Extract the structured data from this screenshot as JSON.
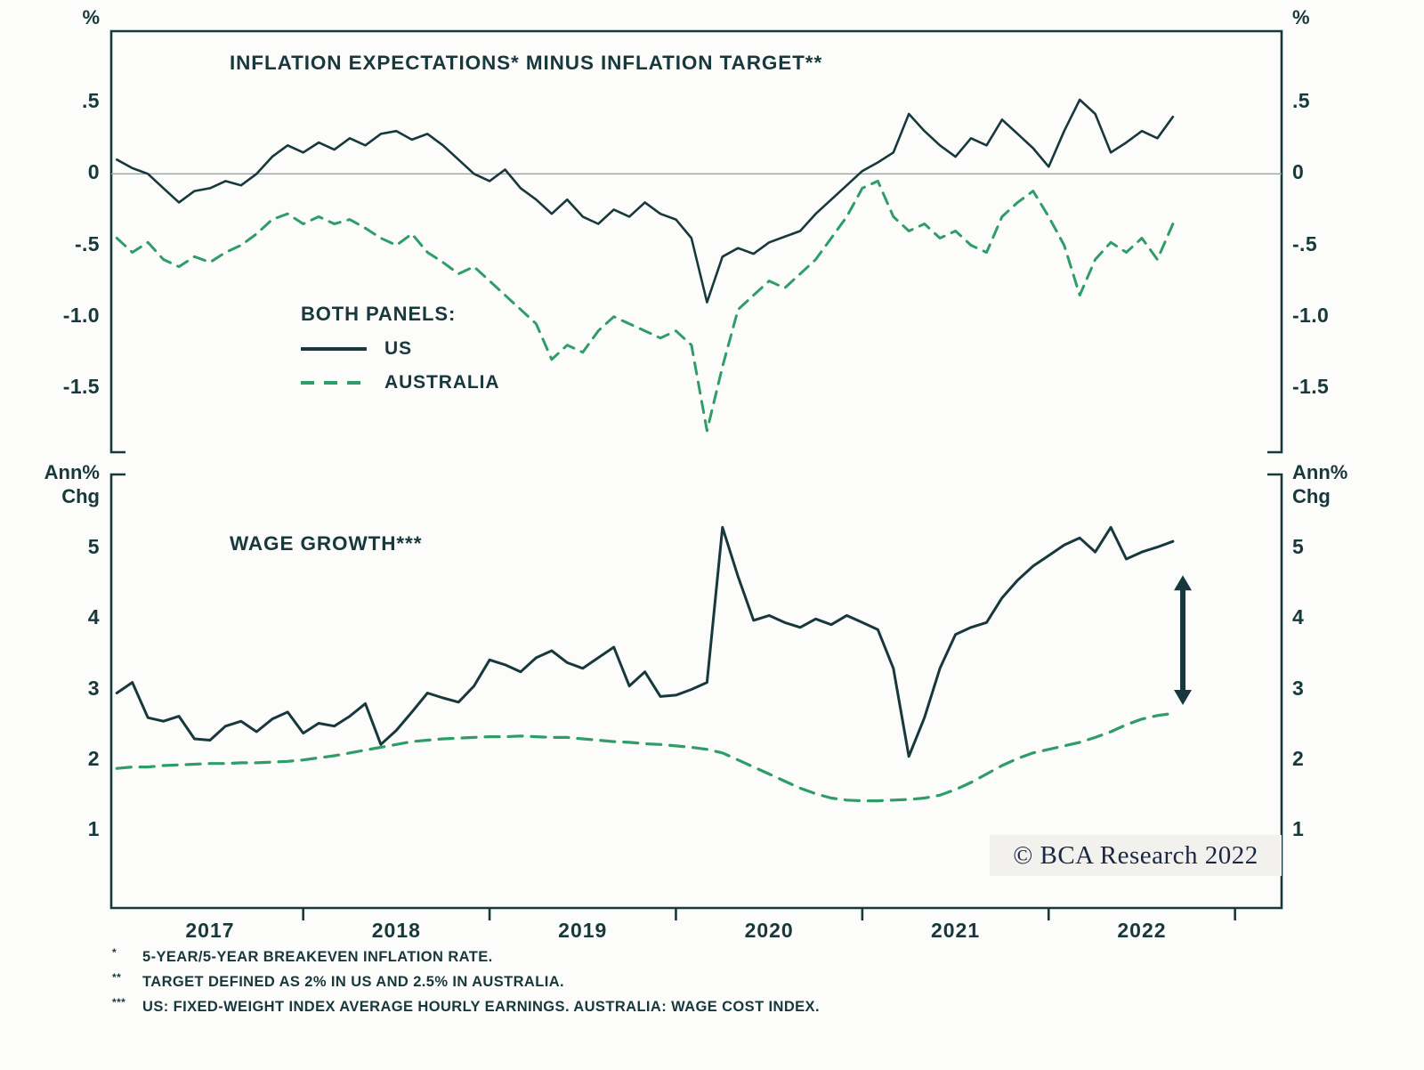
{
  "colors": {
    "ink": "#17383d",
    "green": "#2e9d68",
    "zero_line": "#9aa5a3",
    "watermark_bg": "#f2f1ee",
    "watermark_ink": "#1a2742",
    "background": "#fcfcfa"
  },
  "legend": {
    "title": "BOTH PANELS:",
    "items": [
      {
        "label": "US",
        "style": "solid"
      },
      {
        "label": "AUSTRALIA",
        "style": "dashed"
      }
    ]
  },
  "watermark": "© BCA Research 2022",
  "footnotes": [
    {
      "marker": "*",
      "text": "5-YEAR/5-YEAR BREAKEVEN INFLATION RATE."
    },
    {
      "marker": "**",
      "text": "TARGET DEFINED AS 2% IN US AND 2.5% IN AUSTRALIA."
    },
    {
      "marker": "***",
      "text": "US: FIXED-WEIGHT INDEX AVERAGE HOURLY EARNINGS. AUSTRALIA: WAGE COST INDEX."
    }
  ],
  "xaxis": {
    "xlim": [
      2016.97,
      2023.25
    ],
    "ticks": [
      2018,
      2019,
      2020,
      2021,
      2022,
      2023
    ],
    "labels": [
      {
        "x": 2017.5,
        "text": "2017"
      },
      {
        "x": 2018.5,
        "text": "2018"
      },
      {
        "x": 2019.5,
        "text": "2019"
      },
      {
        "x": 2020.5,
        "text": "2020"
      },
      {
        "x": 2021.5,
        "text": "2021"
      },
      {
        "x": 2022.5,
        "text": "2022"
      }
    ]
  },
  "chart_data": [
    {
      "id": "inflation_expectations_minus_target",
      "type": "line",
      "title": "INFLATION EXPECTATIONS* MINUS INFLATION TARGET**",
      "unit_left": "%",
      "unit_right": "%",
      "ylim": [
        -1.95,
        1.0
      ],
      "yticks": [
        0.5,
        0,
        -0.5,
        -1.0,
        -1.5
      ],
      "ytick_labels": [
        ".5",
        "0",
        "-.5",
        "-1.0",
        "-1.5"
      ],
      "zero_line": 0,
      "series": [
        {
          "name": "AUSTRALIA",
          "style": "dashed",
          "color": "#2e9d68",
          "width": 3,
          "dash": "13 9",
          "x_start": 2017.0,
          "x_step": 0.0833333,
          "values": [
            -0.45,
            -0.55,
            -0.48,
            -0.6,
            -0.65,
            -0.58,
            -0.62,
            -0.55,
            -0.5,
            -0.42,
            -0.32,
            -0.28,
            -0.35,
            -0.3,
            -0.35,
            -0.32,
            -0.38,
            -0.45,
            -0.5,
            -0.42,
            -0.55,
            -0.62,
            -0.7,
            -0.65,
            -0.75,
            -0.85,
            -0.95,
            -1.05,
            -1.3,
            -1.2,
            -1.25,
            -1.1,
            -1.0,
            -1.05,
            -1.1,
            -1.15,
            -1.1,
            -1.2,
            -1.8,
            -1.35,
            -0.95,
            -0.85,
            -0.75,
            -0.8,
            -0.7,
            -0.6,
            -0.45,
            -0.3,
            -0.1,
            -0.05,
            -0.3,
            -0.4,
            -0.35,
            -0.45,
            -0.4,
            -0.5,
            -0.55,
            -0.3,
            -0.2,
            -0.12,
            -0.3,
            -0.5,
            -0.85,
            -0.6,
            -0.48,
            -0.55,
            -0.45,
            -0.6,
            -0.35
          ]
        },
        {
          "name": "US",
          "style": "solid",
          "color": "#17383d",
          "width": 2.6,
          "dash": null,
          "x_start": 2017.0,
          "x_step": 0.0833333,
          "values": [
            0.1,
            0.04,
            0.0,
            -0.1,
            -0.2,
            -0.12,
            -0.1,
            -0.05,
            -0.08,
            0.0,
            0.12,
            0.2,
            0.15,
            0.22,
            0.17,
            0.25,
            0.2,
            0.28,
            0.3,
            0.24,
            0.28,
            0.2,
            0.1,
            0.0,
            -0.05,
            0.03,
            -0.1,
            -0.18,
            -0.28,
            -0.18,
            -0.3,
            -0.35,
            -0.25,
            -0.3,
            -0.2,
            -0.28,
            -0.32,
            -0.45,
            -0.9,
            -0.58,
            -0.52,
            -0.56,
            -0.48,
            -0.44,
            -0.4,
            -0.28,
            -0.18,
            -0.08,
            0.02,
            0.08,
            0.15,
            0.42,
            0.3,
            0.2,
            0.12,
            0.25,
            0.2,
            0.38,
            0.28,
            0.18,
            0.05,
            0.3,
            0.52,
            0.42,
            0.15,
            0.22,
            0.3,
            0.25,
            0.4
          ]
        }
      ]
    },
    {
      "id": "wage_growth",
      "type": "line",
      "title": "WAGE GROWTH***",
      "unit_left": [
        "Ann%",
        "Chg"
      ],
      "unit_right": [
        "Ann%",
        "Chg"
      ],
      "ylim": [
        -0.1,
        6.05
      ],
      "yticks": [
        5,
        4,
        3,
        2,
        1
      ],
      "ytick_labels": [
        "5",
        "4",
        "3",
        "2",
        "1"
      ],
      "zero_line": null,
      "annotation": {
        "type": "double-arrow",
        "x": 2022.72,
        "y_from": 2.78,
        "y_to": 4.62
      },
      "series": [
        {
          "name": "AUSTRALIA",
          "style": "dashed",
          "color": "#2e9d68",
          "width": 3.2,
          "dash": "16 10",
          "x_start": 2017.0,
          "x_step": 0.0833333,
          "values": [
            1.88,
            1.9,
            1.9,
            1.92,
            1.93,
            1.94,
            1.95,
            1.95,
            1.96,
            1.96,
            1.97,
            1.98,
            2.0,
            2.03,
            2.06,
            2.1,
            2.14,
            2.18,
            2.22,
            2.26,
            2.28,
            2.3,
            2.31,
            2.32,
            2.33,
            2.33,
            2.34,
            2.33,
            2.32,
            2.32,
            2.3,
            2.28,
            2.26,
            2.25,
            2.23,
            2.22,
            2.2,
            2.18,
            2.15,
            2.1,
            2.0,
            1.9,
            1.8,
            1.7,
            1.6,
            1.52,
            1.46,
            1.43,
            1.42,
            1.42,
            1.43,
            1.44,
            1.46,
            1.5,
            1.58,
            1.68,
            1.8,
            1.92,
            2.02,
            2.1,
            2.15,
            2.2,
            2.25,
            2.32,
            2.4,
            2.5,
            2.58,
            2.63,
            2.66
          ]
        },
        {
          "name": "US",
          "style": "solid",
          "color": "#17383d",
          "width": 3,
          "dash": null,
          "x_start": 2017.0,
          "x_step": 0.0833333,
          "values": [
            2.95,
            3.1,
            2.6,
            2.55,
            2.62,
            2.3,
            2.28,
            2.48,
            2.55,
            2.4,
            2.58,
            2.68,
            2.38,
            2.52,
            2.48,
            2.62,
            2.8,
            2.22,
            2.42,
            2.68,
            2.95,
            2.88,
            2.82,
            3.05,
            3.42,
            3.35,
            3.25,
            3.45,
            3.55,
            3.38,
            3.3,
            3.45,
            3.6,
            3.05,
            3.25,
            2.9,
            2.92,
            3.0,
            3.1,
            5.3,
            4.6,
            3.98,
            4.05,
            3.95,
            3.88,
            4.0,
            3.92,
            4.05,
            3.95,
            3.85,
            3.3,
            2.05,
            2.6,
            3.3,
            3.78,
            3.88,
            3.95,
            4.3,
            4.55,
            4.75,
            4.9,
            5.05,
            5.15,
            4.95,
            5.3,
            4.85,
            4.95,
            5.02,
            5.1
          ]
        }
      ]
    }
  ]
}
